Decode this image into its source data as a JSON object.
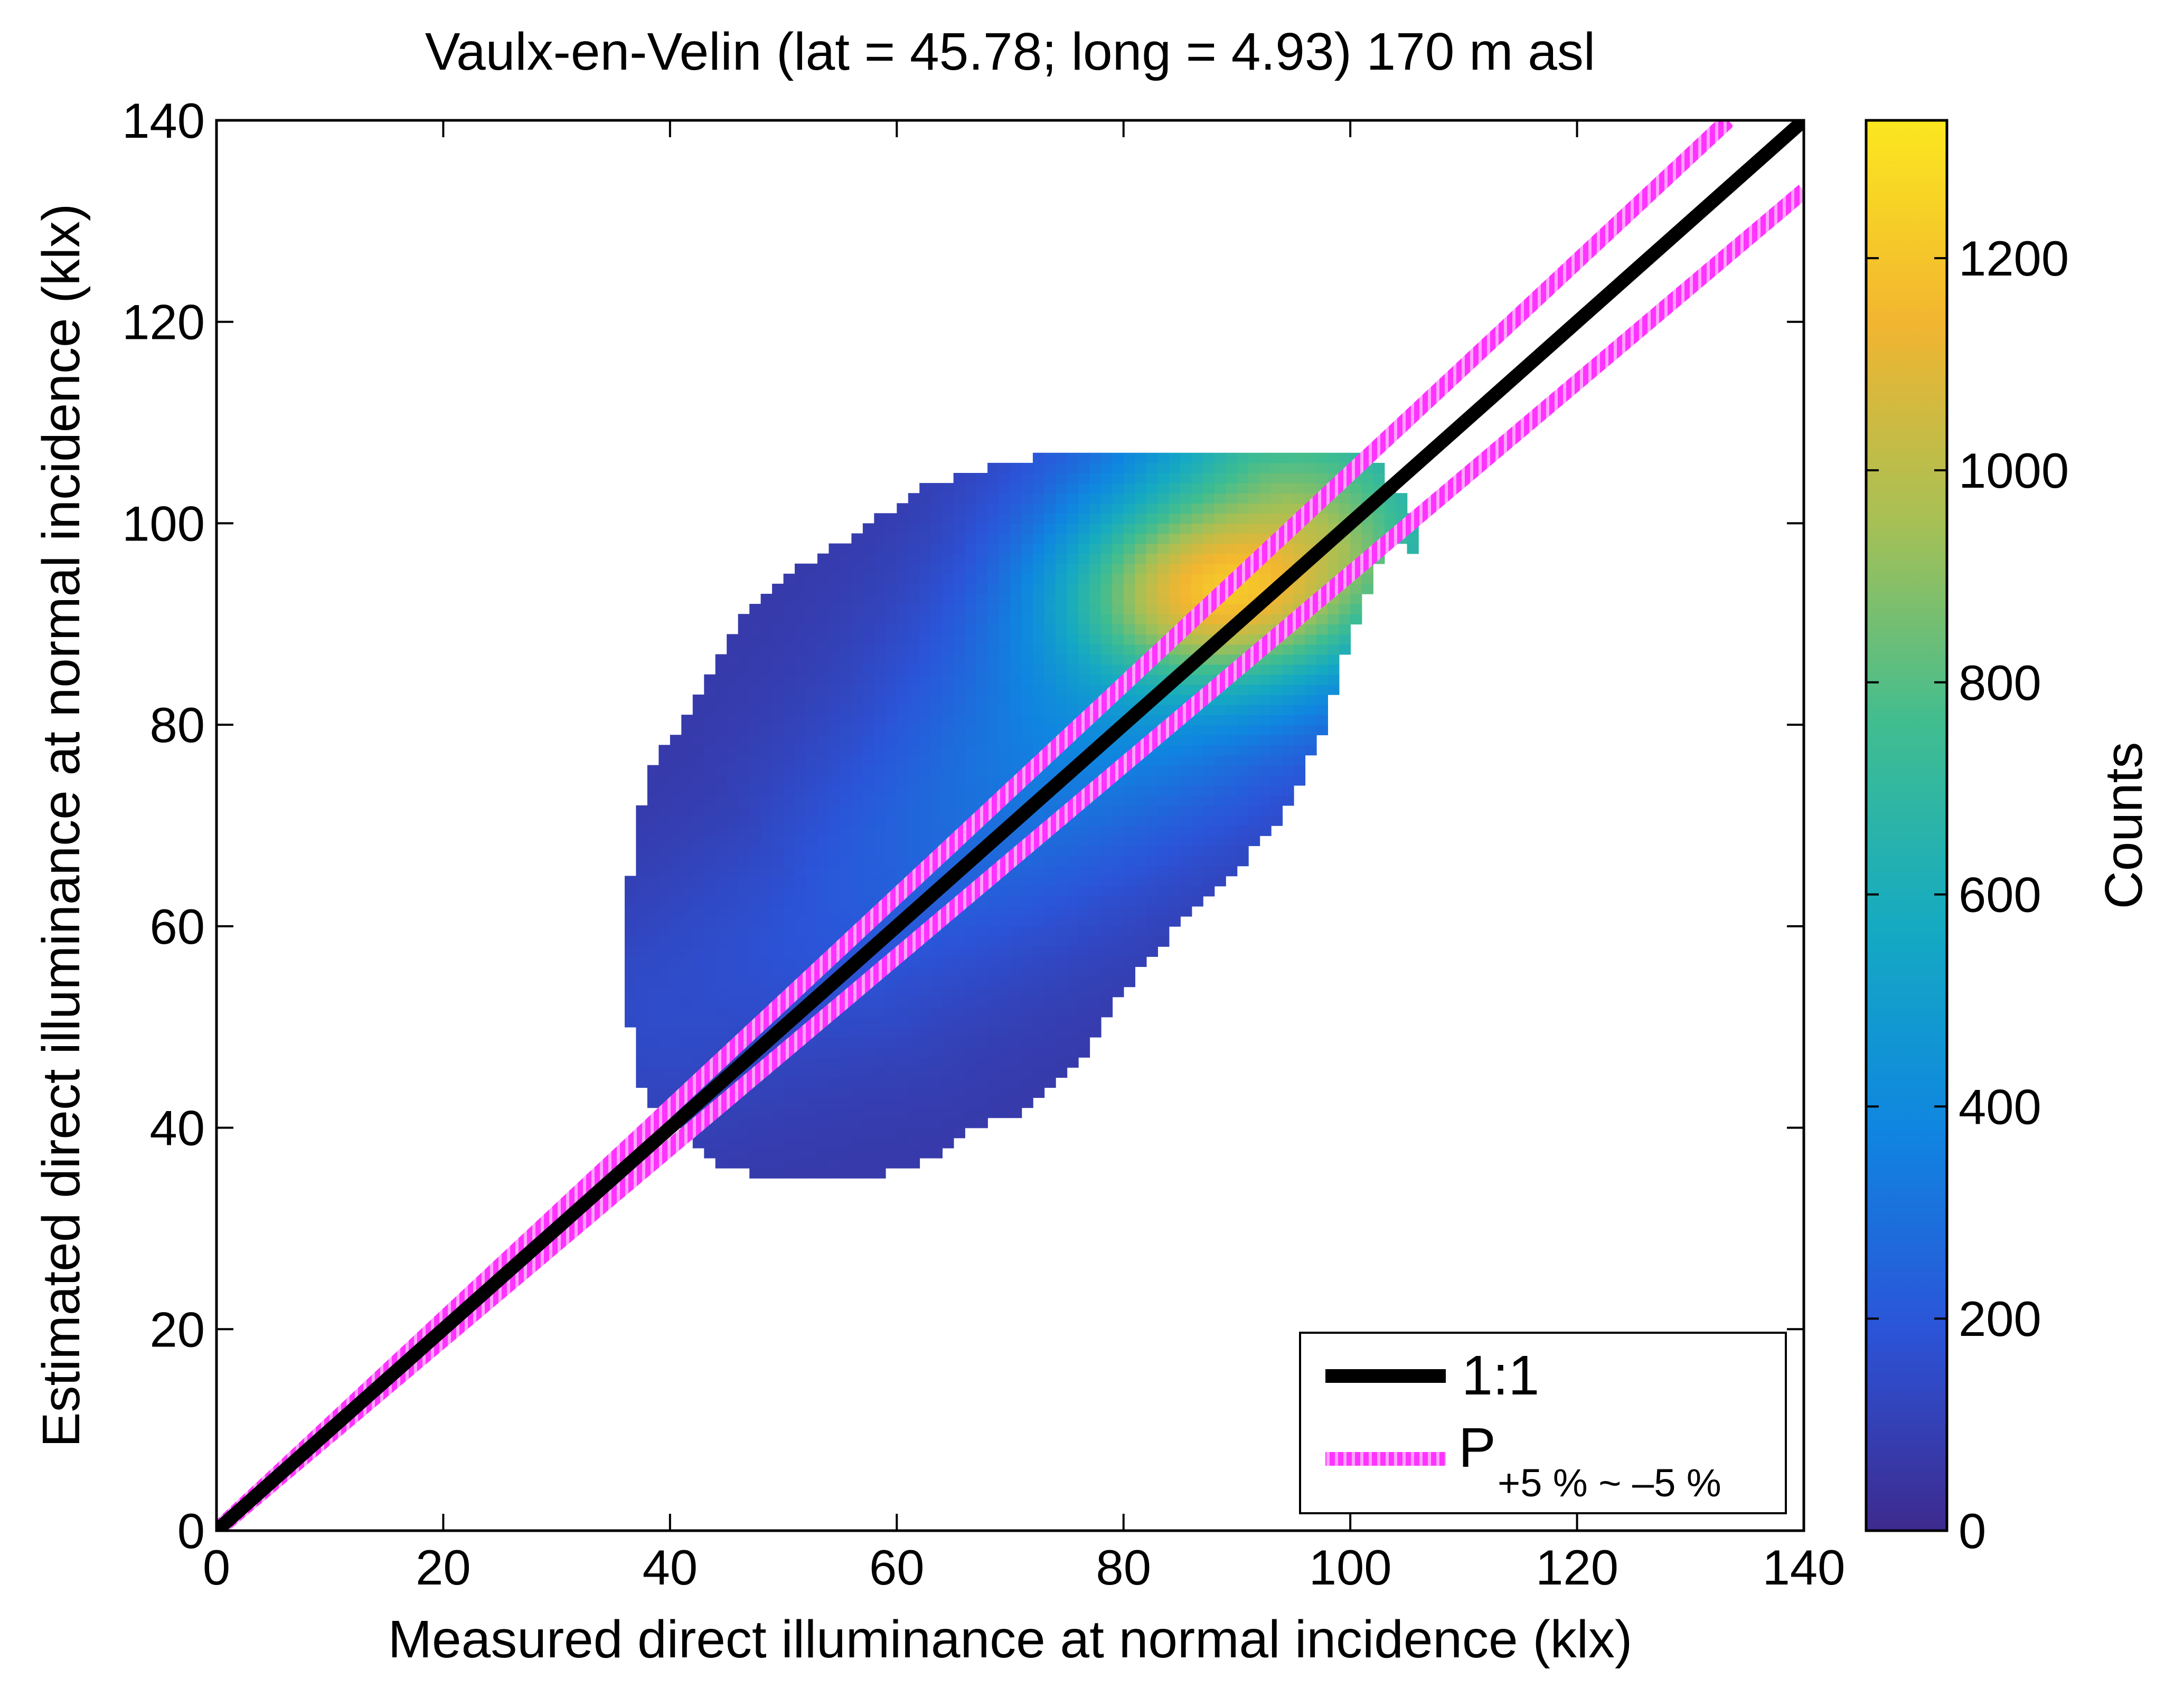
{
  "chart_data": {
    "type": "heatmap",
    "title": "Vaulx-en-Velin (lat = 45.78; long = 4.93) 170 m asl",
    "xlabel": "Measured direct illuminance at normal incidence (klx)",
    "ylabel": "Estimated direct illuminance at normal incidence (klx)",
    "xlim": [
      0,
      140
    ],
    "ylim": [
      0,
      140
    ],
    "xticks": [
      "0",
      "20",
      "40",
      "60",
      "80",
      "100",
      "120",
      "140"
    ],
    "yticks": [
      "0",
      "20",
      "40",
      "60",
      "80",
      "100",
      "120",
      "140"
    ],
    "colorbar": {
      "label": "Counts",
      "range": [
        0,
        1330
      ],
      "ticks": [
        "0",
        "200",
        "400",
        "600",
        "800",
        "1000",
        "1200"
      ],
      "colors": [
        "#3e2a8e",
        "#2b54d8",
        "#0f86e0",
        "#15aac2",
        "#40bd90",
        "#a6c055",
        "#f2b530",
        "#fbe71f"
      ]
    },
    "density": {
      "description_units": "klx",
      "peak": {
        "x": 88,
        "y": 93,
        "counts": 1330
      },
      "envelope": [
        [
          50,
          34.5
        ],
        [
          58,
          35
        ],
        [
          63,
          37
        ],
        [
          67,
          40
        ],
        [
          72,
          42
        ],
        [
          76,
          46
        ],
        [
          79,
          52
        ],
        [
          84,
          59
        ],
        [
          89,
          64
        ],
        [
          94,
          71
        ],
        [
          98,
          80
        ],
        [
          99,
          85
        ],
        [
          101,
          92
        ],
        [
          104,
          99
        ],
        [
          106,
          96
        ],
        [
          106,
          100
        ],
        [
          102,
          107
        ],
        [
          96,
          107.5
        ],
        [
          84,
          107.5
        ],
        [
          72,
          106.5
        ],
        [
          63,
          104
        ],
        [
          55,
          98
        ],
        [
          48,
          93
        ],
        [
          45,
          88
        ],
        [
          42,
          82
        ],
        [
          38,
          75
        ],
        [
          37,
          68
        ],
        [
          36,
          62
        ],
        [
          36,
          55
        ],
        [
          37,
          45
        ],
        [
          40,
          40
        ],
        [
          45,
          36
        ]
      ],
      "ridge": [
        [
          40,
          52
        ],
        [
          55,
          60
        ],
        [
          68,
          72
        ],
        [
          80,
          84
        ],
        [
          88,
          93
        ],
        [
          96,
          101
        ]
      ]
    },
    "series": [
      {
        "name": "1:1",
        "color": "#000000",
        "x": [
          0,
          140
        ],
        "y": [
          0,
          140
        ]
      },
      {
        "name": "+5 %",
        "color": "#ff33ff",
        "x": [
          0,
          133.33
        ],
        "y": [
          0,
          140
        ]
      },
      {
        "name": "−5 %",
        "color": "#ff33ff",
        "x": [
          0,
          140
        ],
        "y": [
          0,
          133
        ]
      }
    ],
    "legend": {
      "position": "bottom-right",
      "items": [
        {
          "label": "1:1",
          "sub": "",
          "color": "#000000"
        },
        {
          "label": "P",
          "sub": "+5 % ~ –5 %",
          "color": "#ff33ff"
        }
      ]
    }
  }
}
